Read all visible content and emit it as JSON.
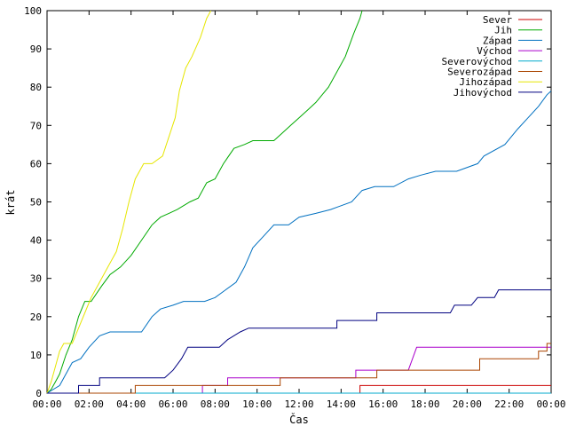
{
  "chart_data": {
    "type": "line",
    "title": "",
    "xlabel": "Čas",
    "ylabel": "krát",
    "x_unit": "hours",
    "xlim": [
      0,
      24
    ],
    "ylim": [
      0,
      100
    ],
    "y_ticks": [
      0,
      10,
      20,
      30,
      40,
      50,
      60,
      70,
      80,
      90,
      100
    ],
    "x_ticks": [
      {
        "value": 0,
        "label": "00:00"
      },
      {
        "value": 2,
        "label": "02:00"
      },
      {
        "value": 4,
        "label": "04:00"
      },
      {
        "value": 6,
        "label": "06:00"
      },
      {
        "value": 8,
        "label": "08:00"
      },
      {
        "value": 10,
        "label": "10:00"
      },
      {
        "value": 12,
        "label": "12:00"
      },
      {
        "value": 14,
        "label": "14:00"
      },
      {
        "value": 16,
        "label": "16:00"
      },
      {
        "value": 18,
        "label": "18:00"
      },
      {
        "value": 20,
        "label": "20:00"
      },
      {
        "value": 22,
        "label": "22:00"
      },
      {
        "value": 24,
        "label": "00:00"
      }
    ],
    "grid": false,
    "legend_position": "top-right",
    "series": [
      {
        "name": "Sever",
        "color": "#cc0000",
        "points": [
          [
            0,
            0
          ],
          [
            14.9,
            0
          ],
          [
            14.9,
            2
          ],
          [
            24,
            2
          ]
        ]
      },
      {
        "name": "Jih",
        "color": "#00aa00",
        "points": [
          [
            0,
            0
          ],
          [
            0.2,
            1
          ],
          [
            0.4,
            3
          ],
          [
            0.6,
            5
          ],
          [
            0.9,
            10
          ],
          [
            1.2,
            14
          ],
          [
            1.5,
            20
          ],
          [
            1.8,
            24
          ],
          [
            2.1,
            24
          ],
          [
            2.6,
            28
          ],
          [
            3.0,
            31
          ],
          [
            3.5,
            33
          ],
          [
            4.0,
            36
          ],
          [
            4.5,
            40
          ],
          [
            5.0,
            44
          ],
          [
            5.4,
            46
          ],
          [
            5.8,
            47
          ],
          [
            6.2,
            48
          ],
          [
            6.8,
            50
          ],
          [
            7.2,
            51
          ],
          [
            7.6,
            55
          ],
          [
            8.0,
            56
          ],
          [
            8.4,
            60
          ],
          [
            8.9,
            64
          ],
          [
            9.4,
            65
          ],
          [
            9.8,
            66
          ],
          [
            10.8,
            66
          ],
          [
            11.2,
            68
          ],
          [
            11.6,
            70
          ],
          [
            12.0,
            72
          ],
          [
            12.4,
            74
          ],
          [
            12.8,
            76
          ],
          [
            13.4,
            80
          ],
          [
            13.8,
            84
          ],
          [
            14.2,
            88
          ],
          [
            14.6,
            94
          ],
          [
            14.9,
            98
          ],
          [
            15.0,
            100
          ]
        ]
      },
      {
        "name": "Západ",
        "color": "#0070c0",
        "points": [
          [
            0,
            0
          ],
          [
            0.6,
            2
          ],
          [
            0.9,
            5
          ],
          [
            1.2,
            8
          ],
          [
            1.6,
            9
          ],
          [
            2.0,
            12
          ],
          [
            2.5,
            15
          ],
          [
            3.0,
            16
          ],
          [
            3.5,
            16
          ],
          [
            4.5,
            16
          ],
          [
            5.0,
            20
          ],
          [
            5.4,
            22
          ],
          [
            6.0,
            23
          ],
          [
            6.5,
            24
          ],
          [
            7.5,
            24
          ],
          [
            8.0,
            25
          ],
          [
            8.5,
            27
          ],
          [
            9.0,
            29
          ],
          [
            9.4,
            33
          ],
          [
            9.8,
            38
          ],
          [
            10.3,
            41
          ],
          [
            10.8,
            44
          ],
          [
            11.5,
            44
          ],
          [
            12.0,
            46
          ],
          [
            12.8,
            47
          ],
          [
            13.5,
            48
          ],
          [
            14.5,
            50
          ],
          [
            15.0,
            53
          ],
          [
            15.6,
            54
          ],
          [
            16.5,
            54
          ],
          [
            17.2,
            56
          ],
          [
            17.8,
            57
          ],
          [
            18.5,
            58
          ],
          [
            19.5,
            58
          ],
          [
            20.5,
            60
          ],
          [
            20.8,
            62
          ],
          [
            21.8,
            65
          ],
          [
            22.4,
            69
          ],
          [
            22.9,
            72
          ],
          [
            23.4,
            75
          ],
          [
            23.8,
            78
          ],
          [
            24.0,
            79
          ]
        ]
      },
      {
        "name": "Východ",
        "color": "#aa00cc",
        "points": [
          [
            0,
            0
          ],
          [
            7.4,
            0
          ],
          [
            7.4,
            2
          ],
          [
            8.6,
            2
          ],
          [
            8.6,
            4
          ],
          [
            14.7,
            4
          ],
          [
            14.7,
            6
          ],
          [
            17.2,
            6
          ],
          [
            17.4,
            9
          ],
          [
            17.6,
            12
          ],
          [
            24,
            12
          ]
        ]
      },
      {
        "name": "Severovýchod",
        "color": "#00aacc",
        "points": [
          [
            0,
            0
          ],
          [
            24,
            0
          ]
        ]
      },
      {
        "name": "Severozápad",
        "color": "#aa4400",
        "points": [
          [
            0,
            0
          ],
          [
            4.2,
            0
          ],
          [
            4.2,
            2
          ],
          [
            11.1,
            2
          ],
          [
            11.1,
            4
          ],
          [
            15.7,
            4
          ],
          [
            15.7,
            6
          ],
          [
            20.6,
            6
          ],
          [
            20.6,
            9
          ],
          [
            23.4,
            9
          ],
          [
            23.4,
            11
          ],
          [
            23.8,
            11
          ],
          [
            23.8,
            13
          ],
          [
            24,
            13
          ]
        ]
      },
      {
        "name": "Jihozápad",
        "color": "#e6e600",
        "points": [
          [
            0,
            0
          ],
          [
            0.2,
            3
          ],
          [
            0.4,
            7
          ],
          [
            0.6,
            11
          ],
          [
            0.8,
            13
          ],
          [
            1.2,
            13
          ],
          [
            1.5,
            17
          ],
          [
            1.8,
            21
          ],
          [
            2.1,
            25
          ],
          [
            2.5,
            29
          ],
          [
            2.9,
            33
          ],
          [
            3.3,
            37
          ],
          [
            3.6,
            43
          ],
          [
            3.9,
            50
          ],
          [
            4.2,
            56
          ],
          [
            4.6,
            60
          ],
          [
            5.0,
            60
          ],
          [
            5.5,
            62
          ],
          [
            5.8,
            67
          ],
          [
            6.1,
            72
          ],
          [
            6.3,
            79
          ],
          [
            6.6,
            85
          ],
          [
            6.9,
            88
          ],
          [
            7.3,
            93
          ],
          [
            7.6,
            98
          ],
          [
            7.8,
            100
          ]
        ]
      },
      {
        "name": "Jihovýchod",
        "color": "#000080",
        "points": [
          [
            0,
            0
          ],
          [
            1.5,
            0
          ],
          [
            1.5,
            2
          ],
          [
            2.5,
            2
          ],
          [
            2.5,
            4
          ],
          [
            5.6,
            4
          ],
          [
            6.0,
            6
          ],
          [
            6.4,
            9
          ],
          [
            6.7,
            12
          ],
          [
            8.2,
            12
          ],
          [
            8.6,
            14
          ],
          [
            9.2,
            16
          ],
          [
            9.6,
            17
          ],
          [
            13.8,
            17
          ],
          [
            13.8,
            19
          ],
          [
            15.7,
            19
          ],
          [
            15.7,
            21
          ],
          [
            19.2,
            21
          ],
          [
            19.4,
            23
          ],
          [
            20.2,
            23
          ],
          [
            20.5,
            25
          ],
          [
            21.3,
            25
          ],
          [
            21.5,
            27
          ],
          [
            24,
            27
          ]
        ]
      }
    ]
  }
}
